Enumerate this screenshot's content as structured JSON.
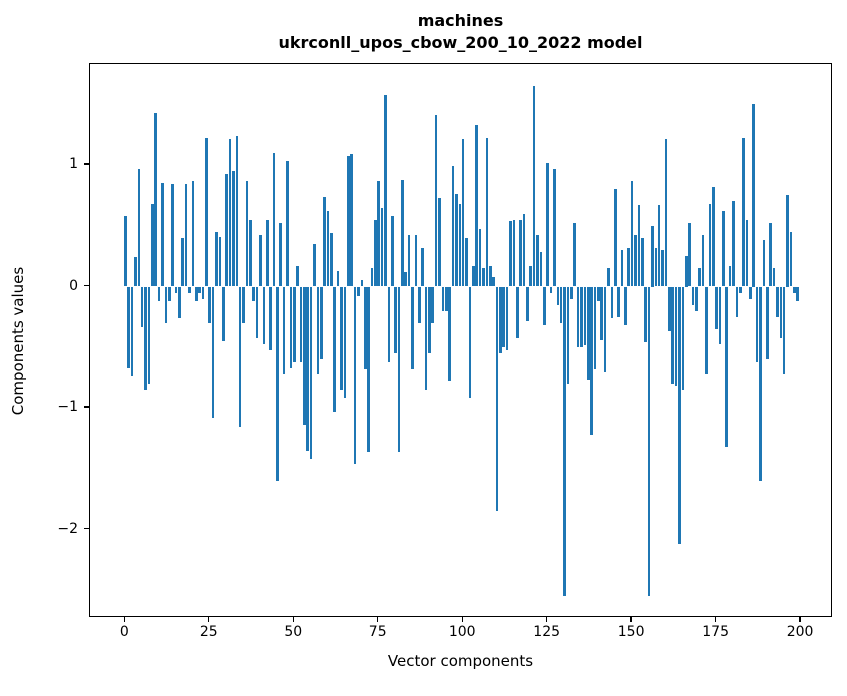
{
  "figure": {
    "title_line1": "machines",
    "title_line2": "ukrconll_upos_cbow_200_10_2022 model",
    "xlabel": "Vector components",
    "ylabel": "Components values"
  },
  "chart_data": {
    "type": "bar",
    "title": "machines\nukrconll_upos_cbow_200_10_2022 model",
    "xlabel": "Vector components",
    "ylabel": "Components values",
    "n_components": 200,
    "bar_color": "#1f77b4",
    "grid": false,
    "legend": null,
    "xticks": [
      0,
      25,
      50,
      75,
      100,
      125,
      150,
      175,
      200
    ],
    "xtick_labels": [
      "0",
      "25",
      "50",
      "75",
      "100",
      "125",
      "150",
      "175",
      "200"
    ],
    "yticks": [
      1,
      0,
      -1,
      -2
    ],
    "ytick_labels": [
      "1",
      "0",
      "−1",
      "−2"
    ],
    "xlim": [
      -10.5,
      209.5
    ],
    "ylim": [
      -2.73,
      1.83
    ],
    "values": [
      0.58,
      -0.67,
      -0.74,
      0.24,
      0.97,
      -0.33,
      -0.85,
      -0.8,
      0.68,
      1.43,
      -0.12,
      0.85,
      -0.3,
      -0.12,
      0.84,
      -0.05,
      -0.26,
      0.4,
      0.84,
      -0.05,
      0.87,
      -0.12,
      -0.05,
      -0.1,
      1.22,
      -0.3,
      -1.08,
      0.45,
      0.41,
      -0.45,
      0.93,
      1.21,
      0.95,
      1.24,
      -1.16,
      -0.3,
      0.87,
      0.55,
      -0.12,
      -0.42,
      0.42,
      -0.47,
      0.55,
      -0.52,
      1.1,
      -1.6,
      0.52,
      -0.72,
      1.03,
      -0.67,
      -0.62,
      0.17,
      -0.62,
      -1.14,
      -1.35,
      -1.42,
      0.35,
      -0.72,
      -0.6,
      0.74,
      0.62,
      0.44,
      -1.03,
      0.13,
      -0.85,
      -0.92,
      1.07,
      1.09,
      -1.46,
      -0.08,
      0.05,
      -0.68,
      -1.36,
      0.15,
      0.55,
      0.87,
      0.65,
      1.58,
      -0.62,
      0.58,
      -0.55,
      -1.36,
      0.88,
      0.12,
      0.42,
      -0.68,
      0.42,
      -0.3,
      0.32,
      -0.85,
      -0.55,
      -0.3,
      1.41,
      0.73,
      -0.2,
      -0.2,
      -0.78,
      0.99,
      0.76,
      0.68,
      1.21,
      0.4,
      -0.92,
      0.17,
      1.33,
      0.47,
      0.15,
      1.22,
      0.17,
      0.08,
      -1.85,
      -0.55,
      -0.5,
      -0.52,
      0.54,
      0.55,
      -0.42,
      0.55,
      0.6,
      -0.28,
      0.17,
      1.65,
      0.42,
      0.28,
      -0.32,
      1.02,
      -0.05,
      0.97,
      -0.15,
      -0.3,
      -2.55,
      -0.8,
      -0.1,
      0.52,
      -0.5,
      -0.5,
      -0.48,
      -0.77,
      -1.22,
      -0.68,
      -0.12,
      -0.44,
      -0.7,
      0.15,
      -0.26,
      0.8,
      -0.25,
      0.3,
      -0.32,
      0.32,
      0.87,
      0.42,
      0.67,
      0.4,
      -0.46,
      -2.55,
      0.5,
      0.32,
      0.67,
      0.3,
      1.21,
      -0.37,
      -0.8,
      -0.82,
      -2.12,
      -0.85,
      0.25,
      0.52,
      -0.15,
      -0.2,
      0.15,
      0.42,
      -0.72,
      0.68,
      0.82,
      -0.35,
      -0.47,
      0.62,
      -1.32,
      0.17,
      0.7,
      -0.25,
      -0.05,
      1.22,
      0.55,
      -0.1,
      1.5,
      -0.62,
      -1.6,
      0.38,
      -0.6,
      0.52,
      0.15,
      -0.25,
      -0.42,
      -0.72,
      0.75,
      0.45,
      -0.05,
      -0.12
    ]
  }
}
